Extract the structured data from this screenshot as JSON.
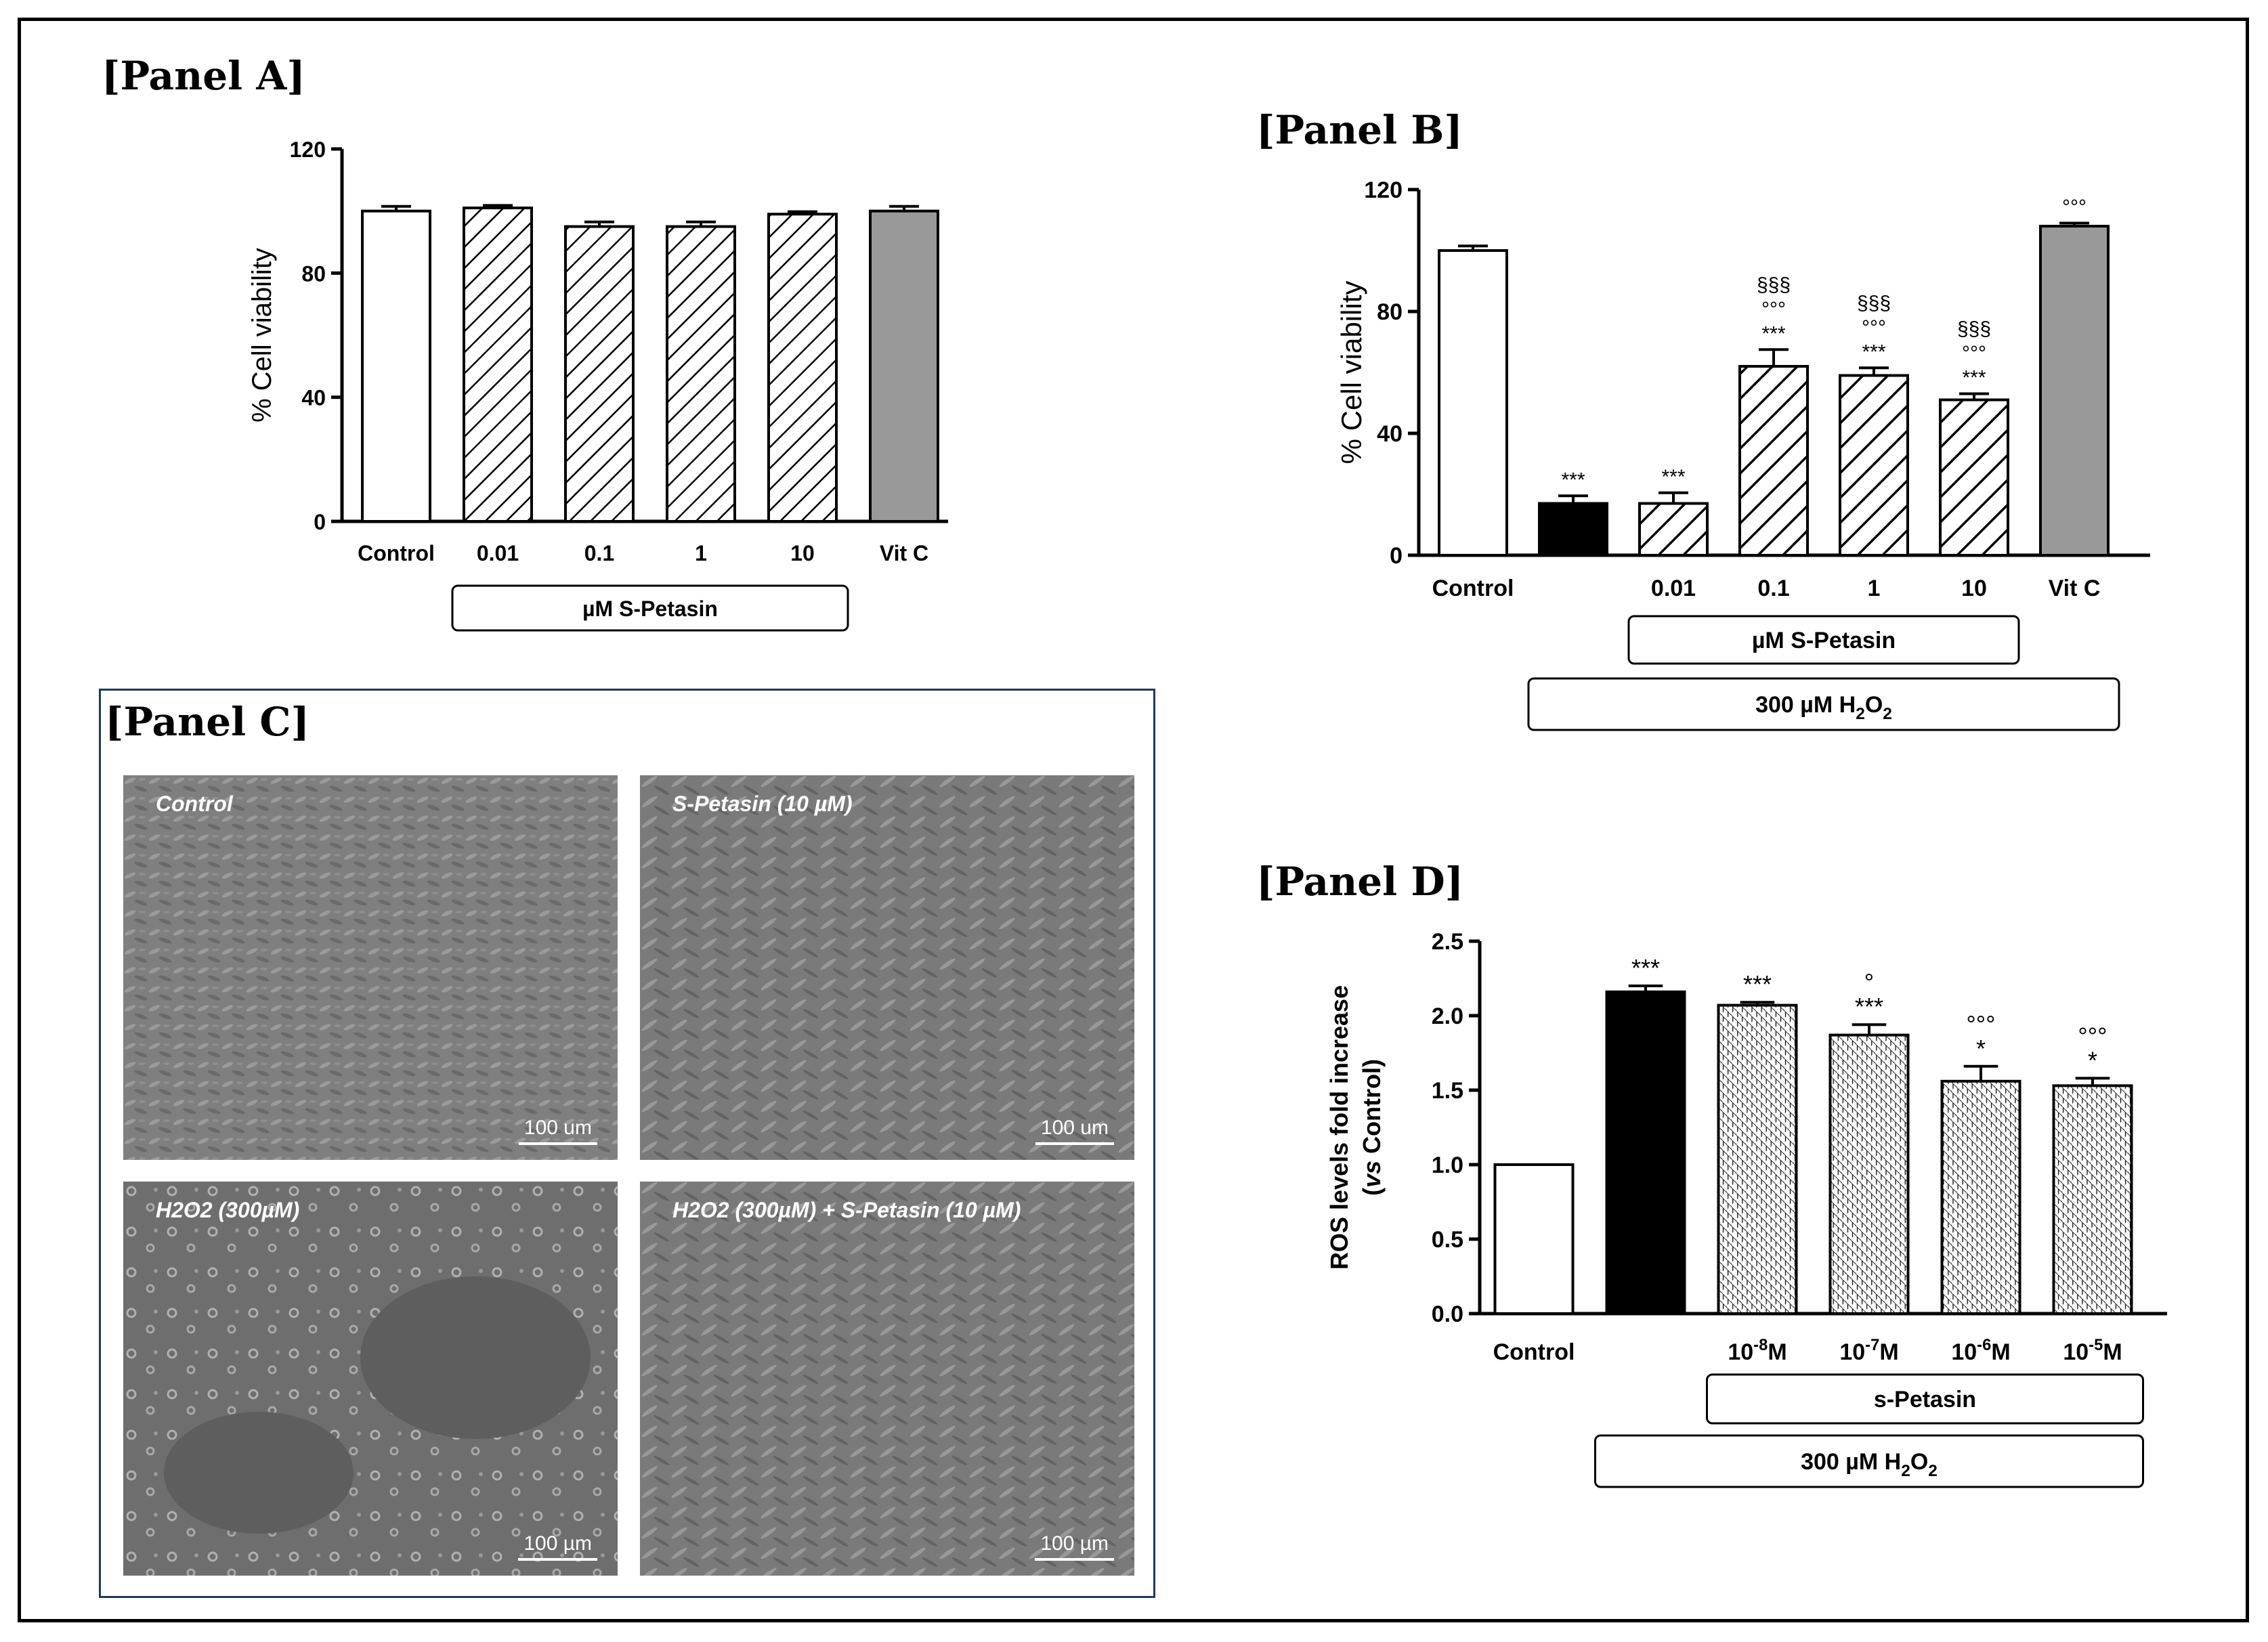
{
  "panels": {
    "a_title": "[Panel A]",
    "b_title": "[Panel B]",
    "c_title": "[Panel C]",
    "d_title": "[Panel D]"
  },
  "chart_data": [
    {
      "id": "panel-a",
      "type": "bar",
      "ylabel": "% Cell viability",
      "ylim": [
        0,
        120
      ],
      "yticks": [
        "0",
        "40",
        "80",
        "120"
      ],
      "categories": [
        "Control",
        "0.01",
        "0.1",
        "1",
        "10",
        "Vit C"
      ],
      "values": [
        100,
        101,
        95,
        95,
        99,
        100
      ],
      "errors": [
        1.5,
        0.8,
        1.5,
        1.5,
        0.8,
        1.5
      ],
      "fills": [
        "white",
        "hatch",
        "hatch",
        "hatch",
        "hatch",
        "grey"
      ],
      "annotations": [
        "",
        "",
        "",
        "",
        "",
        ""
      ],
      "groups": [
        {
          "label": "µM  S-Petasin"
        }
      ]
    },
    {
      "id": "panel-b",
      "type": "bar",
      "ylabel": "% Cell viability",
      "ylim": [
        0,
        120
      ],
      "yticks": [
        "0",
        "40",
        "80",
        "120"
      ],
      "categories": [
        "Control",
        "",
        "0.01",
        "0.1",
        "1",
        "10",
        "Vit C"
      ],
      "values": [
        100,
        17,
        17,
        62,
        59,
        51,
        108
      ],
      "errors": [
        1.5,
        2.5,
        3.5,
        5.5,
        2.5,
        2,
        1
      ],
      "fills": [
        "white",
        "black",
        "hatch",
        "hatch",
        "hatch",
        "hatch",
        "grey"
      ],
      "annotations": [
        [],
        [
          "***"
        ],
        [
          "***"
        ],
        [
          "***",
          "°°°",
          "§§§"
        ],
        [
          "***",
          "°°°",
          "§§§"
        ],
        [
          "***",
          "°°°",
          "§§§"
        ],
        [
          "°°°"
        ]
      ],
      "groups": [
        {
          "label": "µM  S-Petasin"
        },
        {
          "label": "300  µM  H2O2"
        }
      ]
    },
    {
      "id": "panel-d",
      "type": "bar",
      "ylabel": "ROS levels fold increase",
      "ylabel2": "(vs Control)",
      "ylim": [
        0,
        2.5
      ],
      "yticks": [
        "0.0",
        "0.5",
        "1.0",
        "1.5",
        "2.0",
        "2.5"
      ],
      "categories": [
        "Control",
        "",
        "10-8M",
        "10-7M",
        "10-6M",
        "10-5M"
      ],
      "values": [
        1.0,
        2.16,
        2.07,
        1.87,
        1.56,
        1.53
      ],
      "errors": [
        0,
        0.04,
        0.02,
        0.07,
        0.1,
        0.05
      ],
      "fills": [
        "white",
        "black",
        "crosshatch",
        "crosshatch",
        "crosshatch",
        "crosshatch"
      ],
      "annotations": [
        [],
        [
          "***"
        ],
        [
          "***"
        ],
        [
          "***",
          "°"
        ],
        [
          "*",
          "°°°"
        ],
        [
          "*",
          "°°°"
        ]
      ],
      "groups": [
        {
          "label": "s-Petasin"
        },
        {
          "label": "300 µM H2O2"
        }
      ]
    }
  ],
  "micrographs": [
    {
      "caption": "Control",
      "scale": "100 um"
    },
    {
      "caption": "S-Petasin (10 µM)",
      "scale": "100 um"
    },
    {
      "caption": "H2O2 (300µM)",
      "scale": "100 µm"
    },
    {
      "caption": "H2O2 (300µM) + S-Petasin (10 µM)",
      "scale": "100 µm"
    }
  ]
}
